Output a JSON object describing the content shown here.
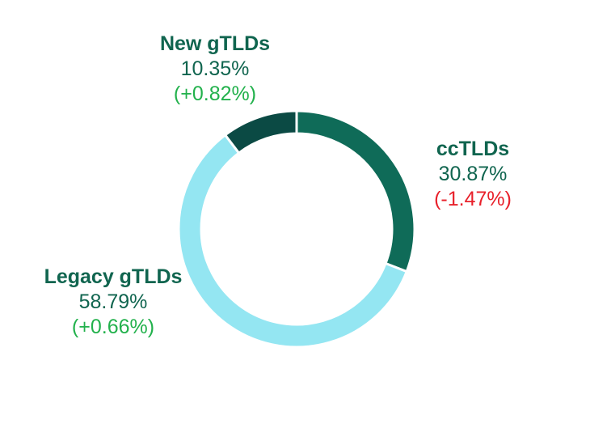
{
  "chart_data": {
    "type": "pie",
    "variant": "donut",
    "categories": [
      "ccTLDs",
      "Legacy gTLDs",
      "New gTLDs"
    ],
    "values": [
      30.87,
      58.79,
      10.35
    ],
    "value_labels": [
      "30.87%",
      "58.79%",
      "10.35%"
    ],
    "changes": [
      "(-1.47%)",
      "(+0.66%)",
      "(+0.82%)"
    ],
    "colors": [
      "#0f6b58",
      "#94e6f2",
      "#0b4a44"
    ],
    "change_colors": [
      "#e8212b",
      "#22b14c",
      "#22b14c"
    ],
    "label_color": "#10654f"
  }
}
